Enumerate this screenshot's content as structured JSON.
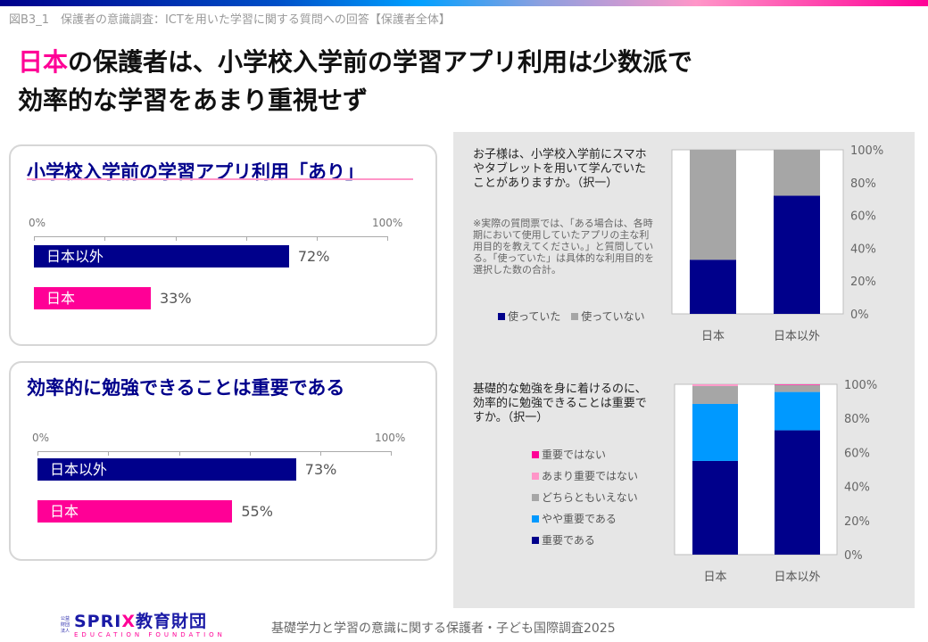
{
  "caption": "図B3_1　保護者の意識調査：ICTを用いた学習に関する質問への回答【保護者全体】",
  "headline": {
    "highlight": "日本",
    "line1_rest": "の保護者は、小学校入学前の学習アプリ利用は少数派で",
    "line2": "効率的な学習をあまり重視せず"
  },
  "colors": {
    "navy": "#00008b",
    "magenta": "#ff0096",
    "gray": "#a6a6a6",
    "lightblue": "#0099ff",
    "pink": "#ff96c8"
  },
  "panels": [
    {
      "title": "小学校入学前の学習アプリ利用「あり」",
      "axis_min": "0%",
      "axis_max": "100%",
      "bars": [
        {
          "label": "日本以外",
          "value": 72,
          "value_label": "72%"
        },
        {
          "label": "日本",
          "value": 33,
          "value_label": "33%"
        }
      ]
    },
    {
      "title": "効率的に勉強できることは重要である",
      "axis_min": "0%",
      "axis_max": "100%",
      "bars": [
        {
          "label": "日本以外",
          "value": 73,
          "value_label": "73%"
        },
        {
          "label": "日本",
          "value": 55,
          "value_label": "55%"
        }
      ]
    }
  ],
  "chart_data": [
    {
      "type": "bar",
      "stacked": true,
      "title": "お子様は、小学校入学前にスマホやタブレットを用いて学んでいたことがありますか。（択一）",
      "note": "※実際の質問票では、「ある場合は、各時期において使用していたアプリの主な利用目的を教えてください。」と質問している。「使っていた」は具体的な利用目的を選択した数の合計。",
      "categories": [
        "日本",
        "日本以外"
      ],
      "series": [
        {
          "name": "使っていた",
          "values": [
            33,
            72
          ],
          "color": "#00008b"
        },
        {
          "name": "使っていない",
          "values": [
            67,
            28
          ],
          "color": "#a6a6a6"
        }
      ],
      "yticks": [
        "0%",
        "20%",
        "40%",
        "60%",
        "80%",
        "100%"
      ],
      "ylim": [
        0,
        100
      ],
      "legend": "bottom-left"
    },
    {
      "type": "bar",
      "stacked": true,
      "title": "基礎的な勉強を身に着けるのに、効率的に勉強できることは重要ですか。（択一）",
      "categories": [
        "日本",
        "日本以外"
      ],
      "series": [
        {
          "name": "重要である",
          "values": [
            55,
            73
          ],
          "color": "#00008b"
        },
        {
          "name": "やや重要である",
          "values": [
            33.5,
            22.5
          ],
          "color": "#0099ff"
        },
        {
          "name": "どちらともいえない",
          "values": [
            10.5,
            4
          ],
          "color": "#a6a6a6"
        },
        {
          "name": "あまり重要ではない",
          "values": [
            1,
            0.2
          ],
          "color": "#ff96c8"
        },
        {
          "name": "重要ではない",
          "values": [
            0,
            0.3
          ],
          "color": "#ff0096"
        }
      ],
      "yticks": [
        "0%",
        "20%",
        "40%",
        "60%",
        "80%",
        "100%"
      ],
      "ylim": [
        0,
        100
      ],
      "legend": "left"
    }
  ],
  "footer": "基礎学力と学習の意識に関する保護者・子ども国際調査2025",
  "logo": {
    "small": "公益財団法人",
    "main_a": "SPRI",
    "main_x": "X",
    "main_b": "教育財団",
    "sub": "EDUCATION FOUNDATION"
  }
}
